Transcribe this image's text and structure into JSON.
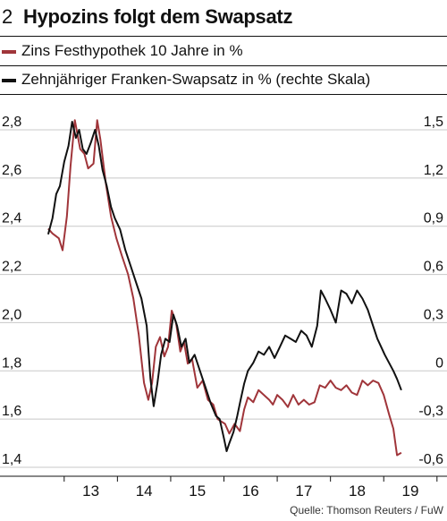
{
  "header": {
    "number": "2",
    "title": "Hypozins folgt dem Swapsatz"
  },
  "legend": [
    {
      "label": "Zins Festhypothek 10 Jahre in %",
      "color": "#a0353a"
    },
    {
      "label": "Zehnjähriger Franken-Swapsatz in % (rechte Skala)",
      "color": "#111111"
    }
  ],
  "source": "Quelle: Thomson Reuters / FuW",
  "chart_data": {
    "type": "line",
    "x_ticks": [
      "13",
      "14",
      "15",
      "16",
      "17",
      "18",
      "19"
    ],
    "x_range": [
      2012.5,
      2019.55
    ],
    "y_left": {
      "ticks": [
        "2,8",
        "2,6",
        "2,4",
        "2,2",
        "2,0",
        "1,8",
        "1,6",
        "1,4"
      ],
      "range": [
        1.4,
        2.8
      ]
    },
    "y_right": {
      "ticks": [
        "1,5",
        "1,2",
        "0,9",
        "0,6",
        "0,3",
        "0",
        "-0,3",
        "-0,6"
      ],
      "range": [
        -0.6,
        1.5
      ]
    },
    "grid": "horizontal",
    "series": [
      {
        "name": "Zins Festhypothek 10 Jahre in %",
        "axis": "left",
        "color": "#a0353a",
        "x": [
          2012.7,
          2012.78,
          2012.9,
          2012.97,
          2013.05,
          2013.12,
          2013.2,
          2013.3,
          2013.38,
          2013.45,
          2013.55,
          2013.62,
          2013.68,
          2013.78,
          2013.88,
          2013.98,
          2014.08,
          2014.2,
          2014.3,
          2014.4,
          2014.5,
          2014.58,
          2014.65,
          2014.72,
          2014.8,
          2014.88,
          2014.95,
          2015.02,
          2015.1,
          2015.18,
          2015.25,
          2015.32,
          2015.4,
          2015.5,
          2015.6,
          2015.7,
          2015.8,
          2015.88,
          2015.95,
          2016.02,
          2016.1,
          2016.2,
          2016.3,
          2016.38,
          2016.45,
          2016.55,
          2016.65,
          2016.75,
          2016.85,
          2016.92,
          2017.0,
          2017.1,
          2017.2,
          2017.3,
          2017.4,
          2017.5,
          2017.6,
          2017.7,
          2017.8,
          2017.9,
          2018.0,
          2018.1,
          2018.2,
          2018.3,
          2018.4,
          2018.5,
          2018.6,
          2018.7,
          2018.8,
          2018.9,
          2019.0,
          2019.1,
          2019.18,
          2019.25,
          2019.33
        ],
        "values": [
          2.39,
          2.37,
          2.35,
          2.3,
          2.44,
          2.65,
          2.84,
          2.72,
          2.7,
          2.64,
          2.66,
          2.84,
          2.76,
          2.58,
          2.44,
          2.35,
          2.28,
          2.2,
          2.1,
          1.95,
          1.75,
          1.68,
          1.75,
          1.9,
          1.94,
          1.86,
          1.9,
          2.05,
          2.0,
          1.88,
          1.92,
          1.83,
          1.85,
          1.73,
          1.76,
          1.68,
          1.66,
          1.6,
          1.59,
          1.58,
          1.54,
          1.58,
          1.55,
          1.64,
          1.69,
          1.67,
          1.72,
          1.7,
          1.68,
          1.66,
          1.7,
          1.68,
          1.65,
          1.7,
          1.66,
          1.68,
          1.66,
          1.67,
          1.74,
          1.73,
          1.76,
          1.73,
          1.72,
          1.74,
          1.71,
          1.7,
          1.76,
          1.74,
          1.76,
          1.75,
          1.7,
          1.62,
          1.56,
          1.45,
          1.46
        ]
      },
      {
        "name": "Zehnjähriger Franken-Swapsatz in % (rechte Skala)",
        "axis": "right",
        "color": "#111111",
        "x": [
          2012.7,
          2012.78,
          2012.85,
          2012.92,
          2013.0,
          2013.08,
          2013.15,
          2013.22,
          2013.28,
          2013.35,
          2013.42,
          2013.5,
          2013.58,
          2013.65,
          2013.72,
          2013.8,
          2013.88,
          2013.95,
          2014.05,
          2014.15,
          2014.25,
          2014.35,
          2014.45,
          2014.55,
          2014.62,
          2014.68,
          2014.75,
          2014.82,
          2014.9,
          2014.98,
          2015.05,
          2015.12,
          2015.2,
          2015.28,
          2015.35,
          2015.45,
          2015.55,
          2015.65,
          2015.75,
          2015.85,
          2015.92,
          2016.0,
          2016.05,
          2016.1,
          2016.18,
          2016.25,
          2016.3,
          2016.38,
          2016.45,
          2016.55,
          2016.65,
          2016.75,
          2016.85,
          2016.95,
          2017.05,
          2017.15,
          2017.25,
          2017.35,
          2017.45,
          2017.55,
          2017.65,
          2017.75,
          2017.82,
          2017.9,
          2018.0,
          2018.1,
          2018.2,
          2018.3,
          2018.4,
          2018.5,
          2018.6,
          2018.7,
          2018.8,
          2018.88,
          2018.95,
          2019.02,
          2019.1,
          2019.18,
          2019.25,
          2019.33
        ],
        "values": [
          0.85,
          0.95,
          1.1,
          1.15,
          1.3,
          1.4,
          1.55,
          1.45,
          1.5,
          1.38,
          1.35,
          1.42,
          1.5,
          1.4,
          1.25,
          1.15,
          1.02,
          0.95,
          0.88,
          0.75,
          0.65,
          0.55,
          0.45,
          0.28,
          -0.05,
          -0.22,
          -0.08,
          0.1,
          0.2,
          0.18,
          0.35,
          0.28,
          0.15,
          0.2,
          0.05,
          0.1,
          0.0,
          -0.1,
          -0.2,
          -0.28,
          -0.3,
          -0.42,
          -0.5,
          -0.45,
          -0.38,
          -0.28,
          -0.2,
          -0.08,
          0.0,
          0.05,
          0.12,
          0.1,
          0.15,
          0.08,
          0.15,
          0.22,
          0.2,
          0.18,
          0.25,
          0.22,
          0.15,
          0.28,
          0.5,
          0.45,
          0.38,
          0.3,
          0.5,
          0.48,
          0.42,
          0.5,
          0.45,
          0.38,
          0.28,
          0.2,
          0.15,
          0.1,
          0.05,
          0.0,
          -0.05,
          -0.12
        ]
      }
    ]
  }
}
